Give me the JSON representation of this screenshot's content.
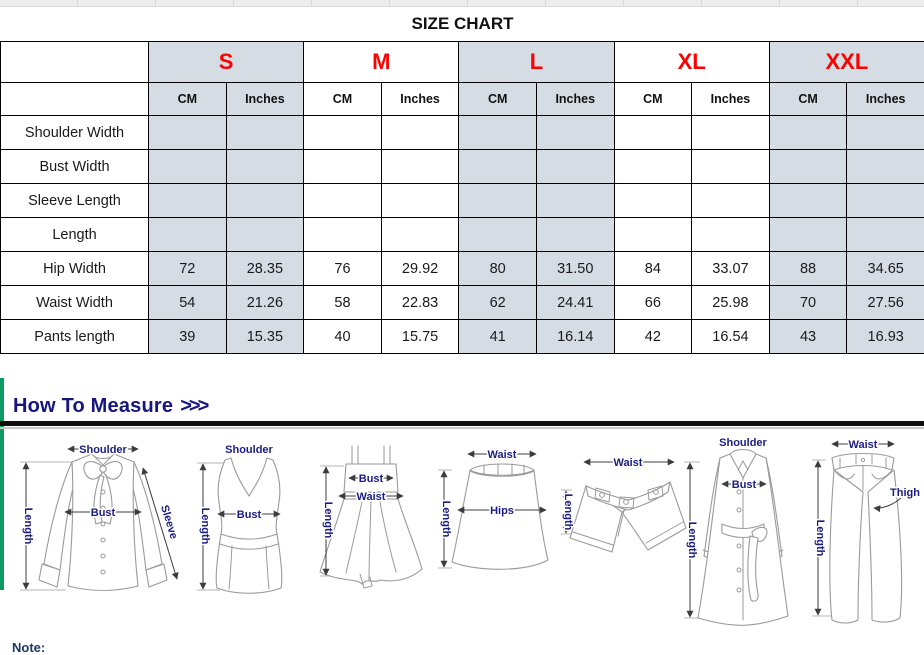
{
  "title": "SIZE CHART",
  "table": {
    "sizes": [
      "S",
      "M",
      "L",
      "XL",
      "XXL"
    ],
    "unit_headers": [
      "CM",
      "Inches"
    ],
    "rows": [
      {
        "label": "Shoulder Width",
        "values": [
          "",
          "",
          "",
          "",
          "",
          "",
          "",
          "",
          "",
          ""
        ]
      },
      {
        "label": "Bust Width",
        "values": [
          "",
          "",
          "",
          "",
          "",
          "",
          "",
          "",
          "",
          ""
        ]
      },
      {
        "label": "Sleeve Length",
        "values": [
          "",
          "",
          "",
          "",
          "",
          "",
          "",
          "",
          "",
          ""
        ]
      },
      {
        "label": "Length",
        "values": [
          "",
          "",
          "",
          "",
          "",
          "",
          "",
          "",
          "",
          ""
        ]
      },
      {
        "label": "Hip Width",
        "values": [
          "72",
          "28.35",
          "76",
          "29.92",
          "80",
          "31.50",
          "84",
          "33.07",
          "88",
          "34.65"
        ]
      },
      {
        "label": "Waist Width",
        "values": [
          "54",
          "21.26",
          "58",
          "22.83",
          "62",
          "24.41",
          "66",
          "25.98",
          "70",
          "27.56"
        ]
      },
      {
        "label": "Pants length",
        "values": [
          "39",
          "15.35",
          "40",
          "15.75",
          "41",
          "16.14",
          "42",
          "16.54",
          "43",
          "16.93"
        ]
      }
    ]
  },
  "measure_section": {
    "heading": "How To Measure",
    "arrows": ">>>"
  },
  "note_label": "Note:",
  "diagrams": {
    "blouse": {
      "shoulder": "Shoulder",
      "bust": "Bust",
      "length": "Length",
      "sleeve": "Sleeve"
    },
    "tank_top": {
      "shoulder": "Shoulder",
      "bust": "Bust",
      "length": "Length"
    },
    "dress": {
      "bust": "Bust",
      "waist": "Waist",
      "length": "Length"
    },
    "skirt": {
      "waist": "Waist",
      "hips": "Hips",
      "length": "Length"
    },
    "shorts": {
      "waist": "Waist",
      "length": "Length"
    },
    "coat": {
      "shoulder": "Shoulder",
      "bust": "Bust",
      "length": "Length"
    },
    "pants": {
      "waist": "Waist",
      "thigh": "Thigh",
      "length": "Length"
    }
  },
  "colors": {
    "size_letter_red": "#ff0000",
    "cell_shade": "#d6dce4",
    "diagram_label_navy": "#1c1c85",
    "heading_navy": "#16167e",
    "divider_green": "#0e9b63",
    "table_border": "#000000"
  }
}
